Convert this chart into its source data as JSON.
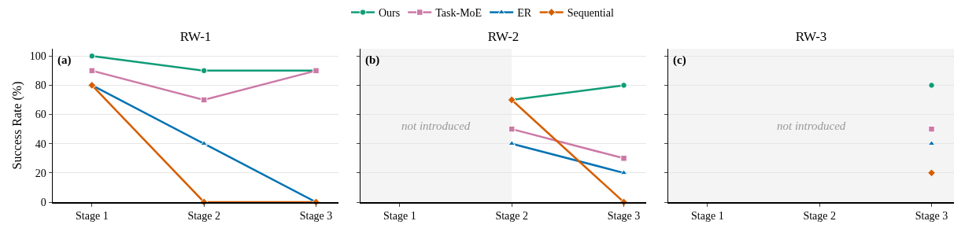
{
  "chart_data": [
    {
      "type": "line",
      "title": "RW-1",
      "ylabel": "Success Rate (%)",
      "categories": [
        "Stage 1",
        "Stage 2",
        "Stage 3"
      ],
      "ylim": [
        0,
        105
      ],
      "yticks": [
        0,
        20,
        40,
        60,
        80,
        100
      ],
      "grid": "y",
      "legend": "top",
      "annotations": [
        "(a)"
      ],
      "series": [
        {
          "name": "Ours",
          "color": "#109c77",
          "marker": "circle",
          "values": [
            100,
            90,
            90
          ]
        },
        {
          "name": "Task-MoE",
          "color": "#cc79a7",
          "marker": "square",
          "values": [
            90,
            70,
            90
          ]
        },
        {
          "name": "ER",
          "color": "#0072b2",
          "marker": "triangle",
          "values": [
            80,
            40,
            0
          ]
        },
        {
          "name": "Sequential",
          "color": "#d55e00",
          "marker": "diamond",
          "values": [
            80,
            0,
            0
          ]
        }
      ]
    },
    {
      "type": "line",
      "title": "RW-2",
      "categories": [
        "Stage 1",
        "Stage 2",
        "Stage 3"
      ],
      "ylim": [
        0,
        105
      ],
      "yticks": [
        0,
        20,
        40,
        60,
        80,
        100
      ],
      "grid": "y",
      "tick_labels": "x",
      "annotations": [
        "(b)"
      ],
      "bands": [
        {
          "axis": "x",
          "from": "Stage 1",
          "to": "Stage 2",
          "label": "not introduced",
          "color": "#f4f4f4"
        }
      ],
      "series": [
        {
          "color": "#109c77",
          "marker": "circle",
          "values": [
            null,
            70,
            80
          ]
        },
        {
          "color": "#cc79a7",
          "marker": "square",
          "values": [
            null,
            50,
            30
          ]
        },
        {
          "color": "#0072b2",
          "marker": "triangle",
          "values": [
            null,
            40,
            20
          ]
        },
        {
          "color": "#d55e00",
          "marker": "diamond",
          "values": [
            null,
            70,
            0
          ]
        }
      ]
    },
    {
      "type": "line",
      "title": "RW-3",
      "categories": [
        "Stage 1",
        "Stage 2",
        "Stage 3"
      ],
      "ylim": [
        0,
        105
      ],
      "yticks": [
        0,
        20,
        40,
        60,
        80,
        100
      ],
      "grid": "y",
      "tick_labels": "x",
      "annotations": [
        "(c)"
      ],
      "bands": [
        {
          "axis": "x",
          "from": "Stage 1",
          "to": "Stage 3",
          "label": "not introduced",
          "color": "#f4f4f4"
        }
      ],
      "series": [
        {
          "color": "#109c77",
          "marker": "circle",
          "values": [
            null,
            null,
            80
          ]
        },
        {
          "color": "#cc79a7",
          "marker": "square",
          "values": [
            null,
            null,
            50
          ]
        },
        {
          "color": "#0072b2",
          "marker": "triangle",
          "values": [
            null,
            null,
            40
          ]
        },
        {
          "color": "#d55e00",
          "marker": "diamond",
          "values": [
            null,
            null,
            20
          ]
        }
      ]
    }
  ]
}
